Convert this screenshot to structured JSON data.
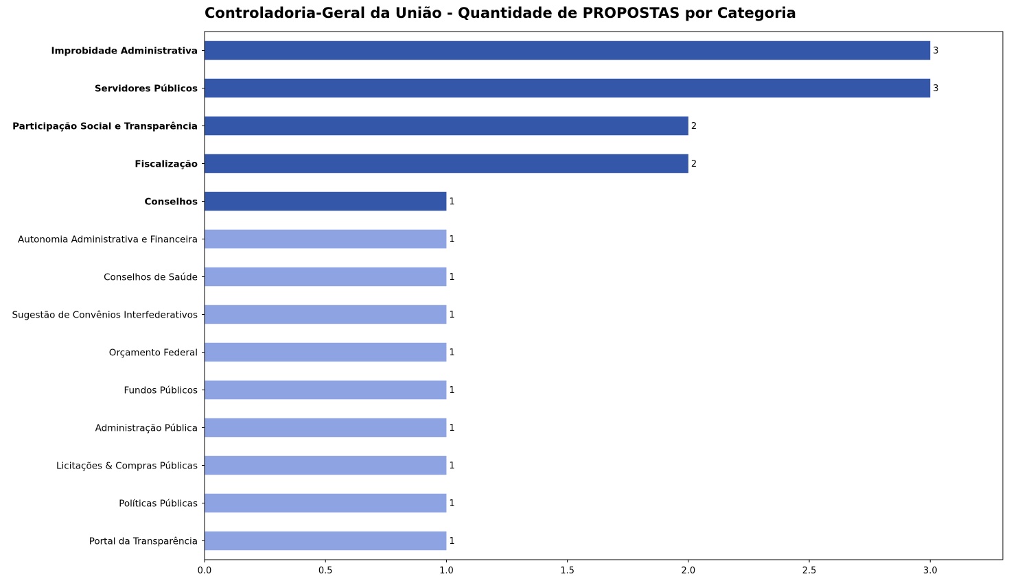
{
  "chart_data": {
    "type": "bar",
    "orientation": "horizontal",
    "title": "Controladoria-Geral da União - Quantidade de PROPOSTAS por Categoria",
    "xlim": [
      0,
      3.3
    ],
    "xticks": [
      "0.0",
      "0.5",
      "1.0",
      "1.5",
      "2.0",
      "2.5",
      "3.0"
    ],
    "xtick_values": [
      0,
      0.5,
      1.0,
      1.5,
      2.0,
      2.5,
      3.0
    ],
    "grid": false,
    "colors": {
      "highlight": "#3457a9",
      "normal": "#8ea4e2"
    },
    "categories": [
      "Improbidade Administrativa",
      "Servidores Públicos",
      "Participação Social e Transparência",
      "Fiscalização",
      "Conselhos",
      "Autonomia Administrativa e Financeira",
      "Conselhos de Saúde",
      "Sugestão de Convênios Interfederativos",
      "Orçamento Federal",
      "Fundos Públicos",
      "Administração Pública",
      "Licitações & Compras Públicas",
      "Políticas Públicas",
      "Portal da Transparência"
    ],
    "values": [
      3,
      3,
      2,
      2,
      1,
      1,
      1,
      1,
      1,
      1,
      1,
      1,
      1,
      1
    ],
    "value_labels": [
      "3",
      "3",
      "2",
      "2",
      "1",
      "1",
      "1",
      "1",
      "1",
      "1",
      "1",
      "1",
      "1",
      "1"
    ],
    "highlighted": [
      true,
      true,
      true,
      true,
      true,
      false,
      false,
      false,
      false,
      false,
      false,
      false,
      false,
      false
    ]
  }
}
